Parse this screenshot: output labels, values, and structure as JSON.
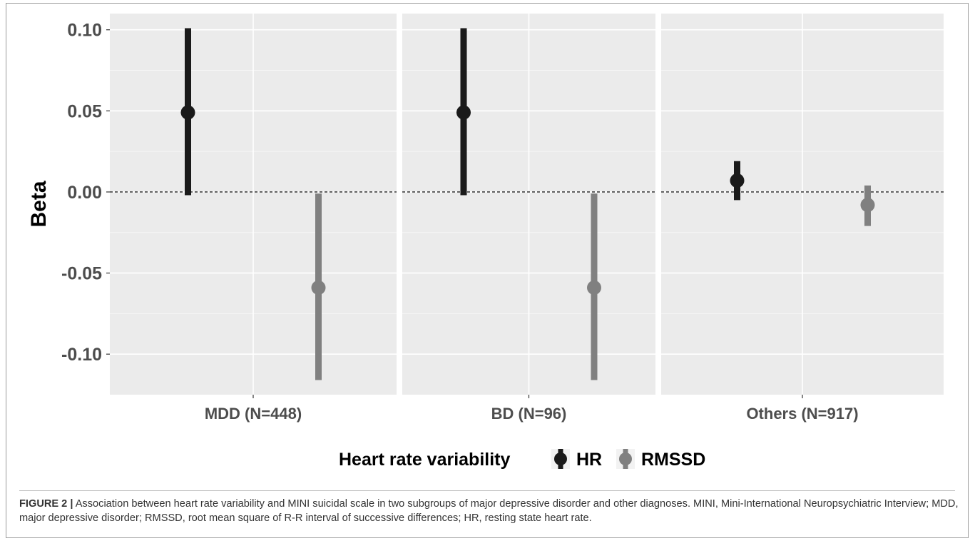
{
  "chart_data": {
    "type": "errorbar",
    "ylabel": "Beta",
    "ylim": [
      -0.125,
      0.11
    ],
    "yticks": [
      0.1,
      0.05,
      0.0,
      -0.05,
      -0.1
    ],
    "ytick_labels": [
      "0.10",
      "0.05",
      "0.00",
      "-0.05",
      "-0.10"
    ],
    "reference_line": 0.0,
    "facets": [
      {
        "label": "MDD (N=448)",
        "points": [
          {
            "series": "HR",
            "beta": 0.049,
            "lower": -0.002,
            "upper": 0.101
          },
          {
            "series": "RMSSD",
            "beta": -0.059,
            "lower": -0.116,
            "upper": -0.001
          }
        ]
      },
      {
        "label": "BD (N=96)",
        "points": [
          {
            "series": "HR",
            "beta": 0.049,
            "lower": -0.002,
            "upper": 0.101
          },
          {
            "series": "RMSSD",
            "beta": -0.059,
            "lower": -0.116,
            "upper": -0.001
          }
        ]
      },
      {
        "label": "Others (N=917)",
        "points": [
          {
            "series": "HR",
            "beta": 0.007,
            "lower": -0.005,
            "upper": 0.019
          },
          {
            "series": "RMSSD",
            "beta": -0.008,
            "lower": -0.021,
            "upper": 0.004
          }
        ]
      }
    ],
    "legend": {
      "title": "Heart rate variability",
      "position": "bottom",
      "items": [
        {
          "name": "HR",
          "color": "#1a1a1a"
        },
        {
          "name": "RMSSD",
          "color": "#808080"
        }
      ]
    },
    "panel_background": "#ebebeb",
    "grid": true
  },
  "caption": {
    "label": "FIGURE 2 |",
    "text": " Association between heart rate variability and MINI suicidal scale in two subgroups of major depressive disorder and other diagnoses. MINI, Mini-International Neuropsychiatric Interview; MDD, major depressive disorder; RMSSD, root mean square of R-R interval of successive differences; HR, resting state heart rate."
  }
}
